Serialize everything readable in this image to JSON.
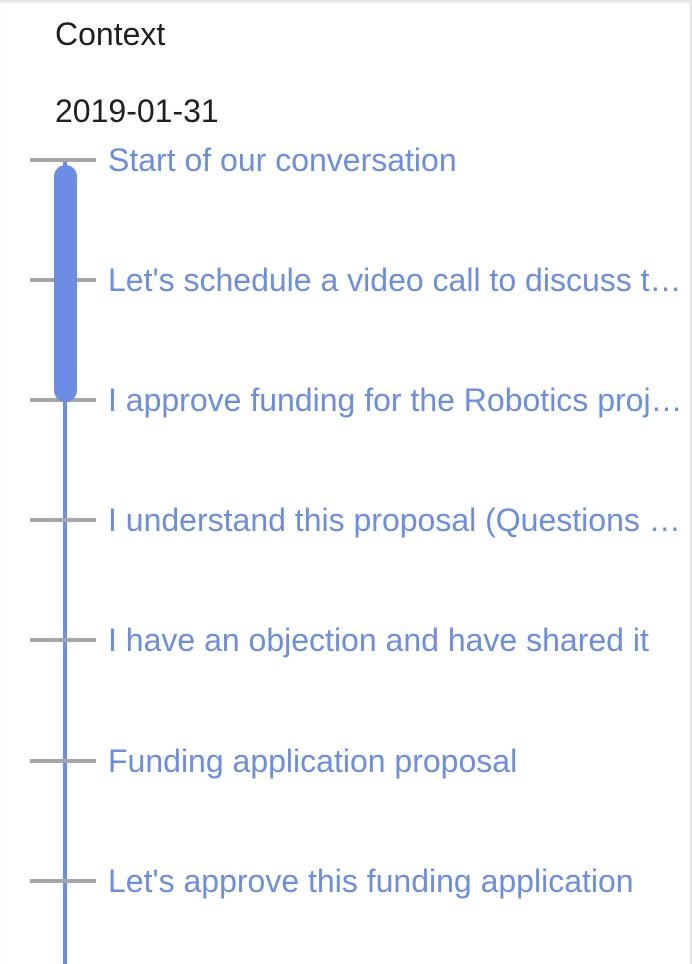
{
  "panel": {
    "heading": "Context",
    "date": "2019-01-31"
  },
  "timeline": {
    "items": [
      {
        "label": "Start of our conversation"
      },
      {
        "label": "Let's schedule a video call to discuss the robotics project"
      },
      {
        "label": "I approve funding for the Robotics project"
      },
      {
        "label": "I understand this proposal (Questions answered)"
      },
      {
        "label": "I have an objection and have shared it"
      },
      {
        "label": "Funding application proposal"
      },
      {
        "label": "Let's approve this funding application"
      }
    ]
  },
  "colors": {
    "accent": "#6b8de3",
    "tick": "#a6a6a6",
    "text": "#1f1f1f"
  }
}
